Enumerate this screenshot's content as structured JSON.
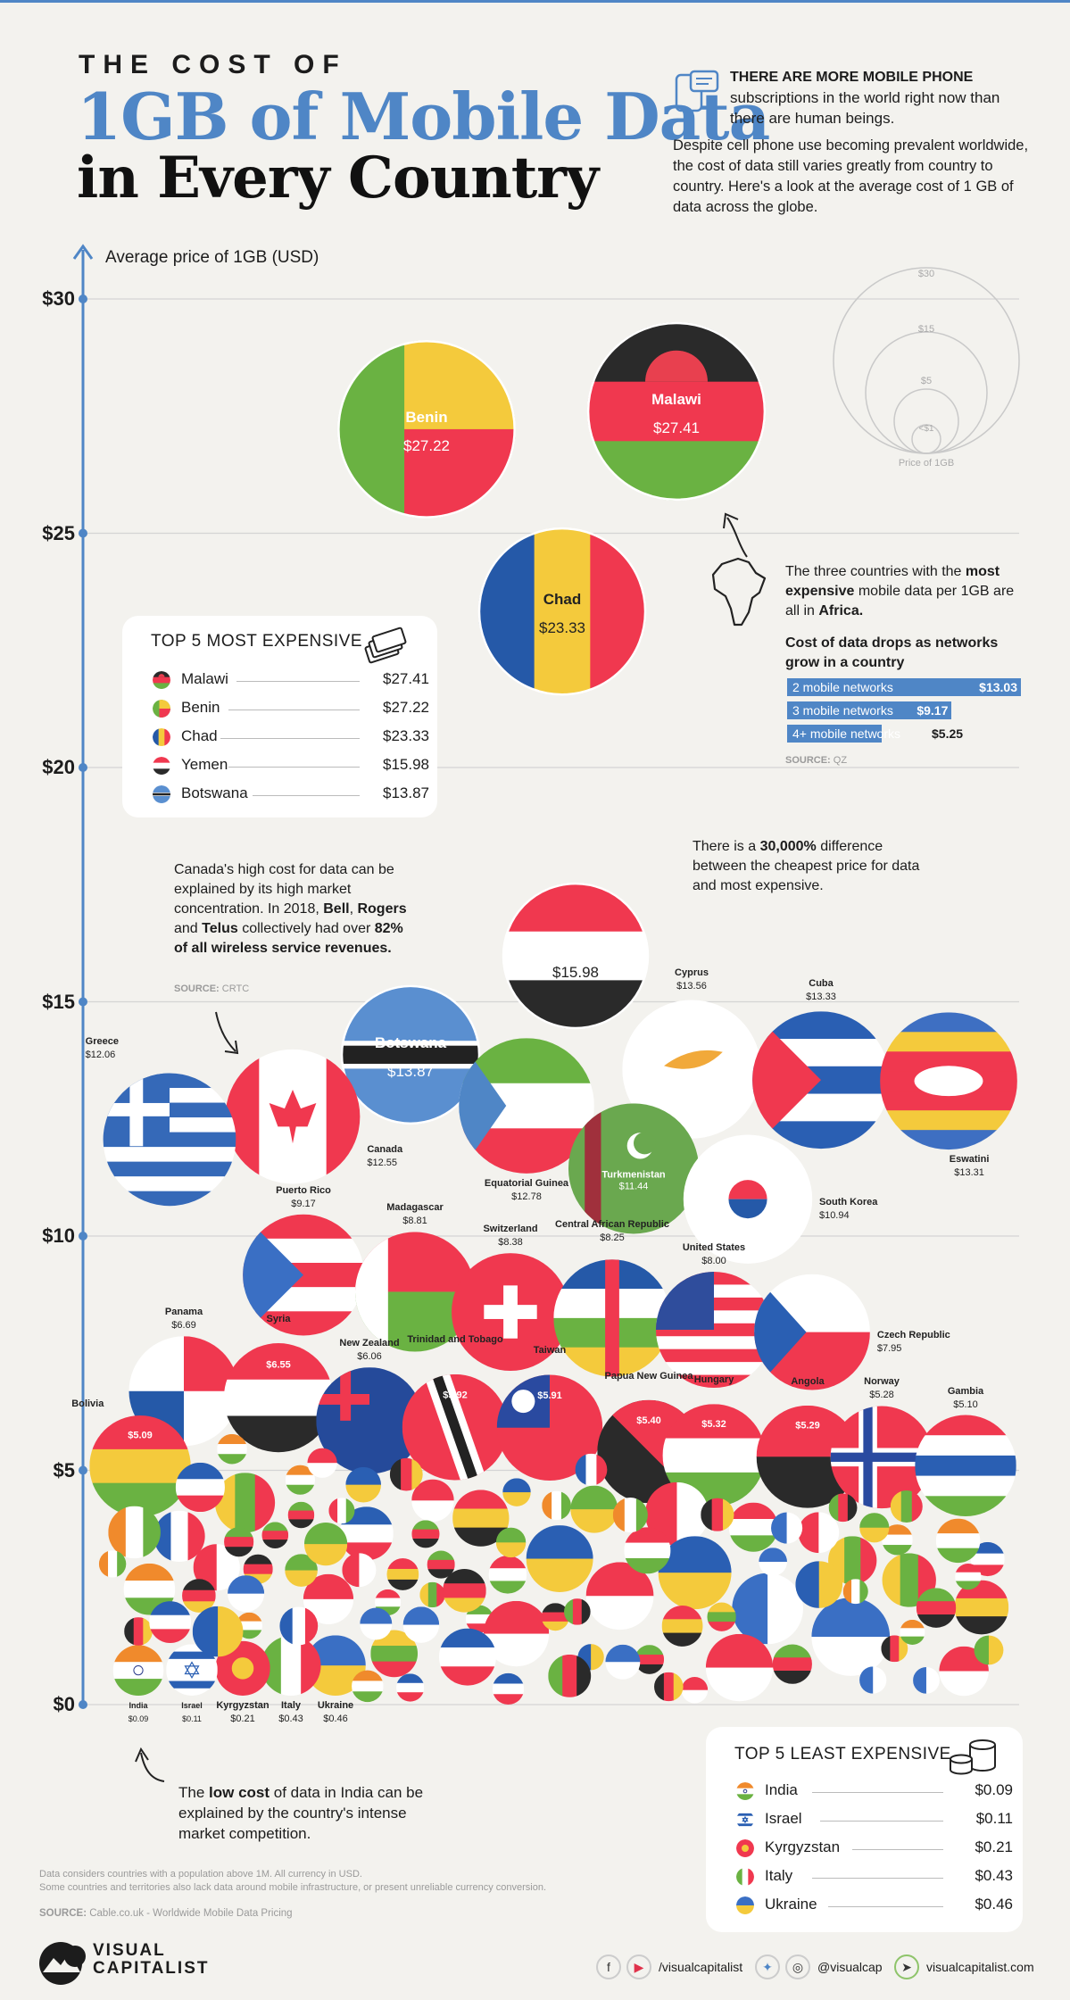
{
  "header": {
    "line1": "THE COST OF",
    "line2": "1GB of Mobile Data",
    "line3": "in Every Country"
  },
  "intro": {
    "headline_bold": "THERE ARE MORE MOBILE PHONE",
    "headline_rest": "subscriptions in the world right now than there are human beings.",
    "body": "Despite cell phone use becoming prevalent worldwide, the cost of data still varies greatly from country to country. Here's a look at the average cost of 1 GB of data across the globe."
  },
  "chart_data": {
    "type": "scatter",
    "title": "The cost of 1GB of Mobile Data in Every Country",
    "ylabel": "Average price of 1GB (USD)",
    "ylim": [
      0,
      30
    ],
    "yticks": [
      "$0",
      "$5",
      "$10",
      "$15",
      "$20",
      "$25",
      "$30"
    ],
    "grid": true,
    "size_legend": [
      "$30",
      "$15",
      "$5",
      "<$1"
    ],
    "size_legend_title": "Price of 1GB",
    "points": [
      {
        "country": "Malawi",
        "value": 27.41,
        "label": "$27.41",
        "flag": "malawi"
      },
      {
        "country": "Benin",
        "value": 27.22,
        "label": "$27.22",
        "flag": "benin"
      },
      {
        "country": "Chad",
        "value": 23.33,
        "label": "$23.33",
        "flag": "chad"
      },
      {
        "country": "Yemen",
        "value": 15.98,
        "label": "$15.98",
        "flag": "yemen"
      },
      {
        "country": "Botswana",
        "value": 13.87,
        "label": "$13.87",
        "flag": "botswana"
      },
      {
        "country": "Cyprus",
        "value": 13.56,
        "label": "$13.56",
        "flag": "cyprus"
      },
      {
        "country": "Cuba",
        "value": 13.33,
        "label": "$13.33",
        "flag": "cuba"
      },
      {
        "country": "Eswatini",
        "value": 13.31,
        "label": "$13.31",
        "flag": "eswatini"
      },
      {
        "country": "Equatorial Guinea",
        "value": 12.78,
        "label": "$12.78",
        "flag": "eqguinea"
      },
      {
        "country": "Canada",
        "value": 12.55,
        "label": "$12.55",
        "flag": "canada"
      },
      {
        "country": "Greece",
        "value": 12.06,
        "label": "$12.06",
        "flag": "greece"
      },
      {
        "country": "Turkmenistan",
        "value": 11.44,
        "label": "$11.44",
        "flag": "turkmenistan"
      },
      {
        "country": "South Korea",
        "value": 10.94,
        "label": "$10.94",
        "flag": "korea"
      },
      {
        "country": "Puerto Rico",
        "value": 9.17,
        "label": "$9.17",
        "flag": "puertorico"
      },
      {
        "country": "Madagascar",
        "value": 8.81,
        "label": "$8.81",
        "flag": "madagascar"
      },
      {
        "country": "Switzerland",
        "value": 8.38,
        "label": "$8.38",
        "flag": "switzerland"
      },
      {
        "country": "Central African Republic",
        "value": 8.25,
        "label": "$8.25",
        "flag": "car"
      },
      {
        "country": "United States",
        "value": 8.0,
        "label": "$8.00",
        "flag": "usa"
      },
      {
        "country": "Czech Republic",
        "value": 7.95,
        "label": "$7.95",
        "flag": "czech"
      },
      {
        "country": "Panama",
        "value": 6.69,
        "label": "$6.69",
        "flag": "panama"
      },
      {
        "country": "Syria",
        "value": 6.55,
        "label": "$6.55",
        "flag": "syria"
      },
      {
        "country": "New Zealand",
        "value": 6.06,
        "label": "$6.06",
        "flag": "nz"
      },
      {
        "country": "Trinidad and Tobago",
        "value": 5.92,
        "label": "$5.92",
        "flag": "trinidad"
      },
      {
        "country": "Taiwan",
        "value": 5.91,
        "label": "$5.91",
        "flag": "taiwan"
      },
      {
        "country": "Papua New Guinea",
        "value": 5.4,
        "label": "$5.40",
        "flag": "png"
      },
      {
        "country": "Hungary",
        "value": 5.32,
        "label": "$5.32",
        "flag": "hungary"
      },
      {
        "country": "Angola",
        "value": 5.29,
        "label": "$5.29",
        "flag": "angola"
      },
      {
        "country": "Norway",
        "value": 5.28,
        "label": "$5.28",
        "flag": "norway"
      },
      {
        "country": "Gambia",
        "value": 5.1,
        "label": "$5.10",
        "flag": "gambia"
      },
      {
        "country": "Bolivia",
        "value": 5.09,
        "label": "$5.09",
        "flag": "bolivia"
      },
      {
        "country": "Ukraine",
        "value": 0.46,
        "label": "$0.46",
        "flag": "ukraine"
      },
      {
        "country": "Italy",
        "value": 0.43,
        "label": "$0.43",
        "flag": "italy"
      },
      {
        "country": "Kyrgyzstan",
        "value": 0.21,
        "label": "$0.21",
        "flag": "kyrgyzstan"
      },
      {
        "country": "Israel",
        "value": 0.11,
        "label": "$0.11",
        "flag": "israel"
      },
      {
        "country": "India",
        "value": 0.09,
        "label": "$0.09",
        "flag": "india"
      }
    ]
  },
  "top5_expensive": {
    "title": "TOP 5 MOST EXPENSIVE",
    "rows": [
      {
        "name": "Malawi",
        "value": "$27.41"
      },
      {
        "name": "Benin",
        "value": "$27.22"
      },
      {
        "name": "Chad",
        "value": "$23.33"
      },
      {
        "name": "Yemen",
        "value": "$15.98"
      },
      {
        "name": "Botswana",
        "value": "$13.87"
      }
    ]
  },
  "top5_cheapest": {
    "title": "TOP 5 LEAST EXPENSIVE",
    "rows": [
      {
        "name": "India",
        "value": "$0.09"
      },
      {
        "name": "Israel",
        "value": "$0.11"
      },
      {
        "name": "Kyrgyzstan",
        "value": "$0.21"
      },
      {
        "name": "Italy",
        "value": "$0.43"
      },
      {
        "name": "Ukraine",
        "value": "$0.46"
      }
    ]
  },
  "africa_note": {
    "pre": "The three countries with the",
    "bold1": "most expensive",
    "mid": "mobile data per 1GB are all in",
    "bold2": "Africa."
  },
  "networks": {
    "title": "Cost of data drops as networks grow in a country",
    "rows": [
      {
        "label": "2 mobile networks",
        "value": "$13.03",
        "amount": 13.03
      },
      {
        "label": "3 mobile networks",
        "value": "$9.17",
        "amount": 9.17
      },
      {
        "label": "4+ mobile networks",
        "value": "$5.25",
        "amount": 5.25
      }
    ],
    "source_label": "SOURCE:",
    "source": "QZ"
  },
  "difference_note": {
    "pre": "There is a",
    "bold": "30,000%",
    "post": "difference between the cheapest price for data and most expensive."
  },
  "canada_note": {
    "p1": "Canada's high cost for data can be explained by its high market concentration. In 2018,",
    "b1": "Bell",
    "b2": "Rogers",
    "and": "and",
    "b3": "Telus",
    "p2": "collectively had over",
    "b4": "82% of all wireless service revenues.",
    "source_label": "SOURCE:",
    "source": "CRTC"
  },
  "india_note": {
    "pre": "The",
    "bold": "low cost",
    "post": "of data in India can be explained by the country's intense market competition."
  },
  "footer": {
    "note1": "Data considers countries with a population above 1M. All currency in USD.",
    "note2": "Some countries and territories also lack data around mobile infrastructure, or present unreliable currency conversion.",
    "source_label": "SOURCE:",
    "source": "Cable.co.uk - Worldwide Mobile Data Pricing",
    "brand1": "VISUAL",
    "brand2": "CAPITALIST",
    "handle1": "/visualcapitalist",
    "handle2": "@visualcap",
    "site": "visualcapitalist.com"
  },
  "colors": {
    "accent": "#4f86c6",
    "red": "#f0384f",
    "yellow": "#f4ca3c",
    "green": "#6ab242",
    "black": "#2a2a2a"
  }
}
